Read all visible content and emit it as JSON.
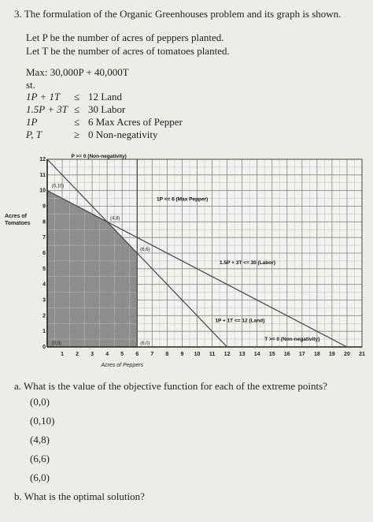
{
  "question": {
    "title": "3. The formulation of the Organic Greenhouses problem and its graph is shown.",
    "let_p": "Let P be the number of acres of peppers planted.",
    "let_t": "Let T be the number of acres of tomatoes planted.",
    "objective": "Max: 30,000P + 40,000T",
    "st": "st.",
    "constraints": [
      {
        "lhs": "1P + 1T",
        "rel": "≤",
        "rhs": "12 Land"
      },
      {
        "lhs": "1.5P + 3T",
        "rel": "≤",
        "rhs": "30 Labor"
      },
      {
        "lhs": "1P",
        "rel": "≤",
        "rhs": "6 Max Acres of Pepper"
      },
      {
        "lhs": "P, T",
        "rel": "≥",
        "rhs": "0 Non-negativity"
      }
    ]
  },
  "chart_data": {
    "type": "line",
    "xlabel": "Acres of Peppers",
    "ylabel": "Acres of Tomatoes",
    "xlim": [
      0,
      21
    ],
    "ylim": [
      0,
      12
    ],
    "x_ticks": [
      "0",
      "1",
      "2",
      "3",
      "4",
      "5",
      "6",
      "7",
      "8",
      "9",
      "10",
      "11",
      "12",
      "13",
      "14",
      "15",
      "16",
      "17",
      "18",
      "19",
      "20",
      "21"
    ],
    "y_ticks": [
      "0",
      "1",
      "2",
      "3",
      "4",
      "5",
      "6",
      "7",
      "8",
      "9",
      "10",
      "11",
      "12"
    ],
    "grid": true,
    "series": [
      {
        "name": "1P + 1T <= 12 (Land)",
        "x": [
          0,
          12
        ],
        "y": [
          12,
          0
        ]
      },
      {
        "name": "1.5P + 3T <= 30 (Labor)",
        "x": [
          0,
          20
        ],
        "y": [
          10,
          0
        ]
      },
      {
        "name": "1P <= 6 (Max Pepper)",
        "x": [
          6,
          6
        ],
        "y": [
          0,
          12
        ]
      }
    ],
    "feasible_region": [
      [
        0,
        0
      ],
      [
        0,
        10
      ],
      [
        4,
        8
      ],
      [
        6,
        6
      ],
      [
        6,
        0
      ]
    ],
    "line_labels": [
      {
        "text": "P >= 0 (Non-negativity)",
        "x": 1.6,
        "y": 12.1
      },
      {
        "text": "1P <= 6 (Max Pepper)",
        "x": 7.3,
        "y": 9.35
      },
      {
        "text": "1.5P + 3T <= 30 (Labor)",
        "x": 11.5,
        "y": 5.3
      },
      {
        "text": "1P + 1T <= 12 (Land)",
        "x": 11.2,
        "y": 1.6
      },
      {
        "text": "T >= 0 (Non-negativity)",
        "x": 14.5,
        "y": 0.4
      }
    ],
    "point_labels": [
      {
        "text": "(0,10)",
        "x": 0.3,
        "y": 10.2
      },
      {
        "text": "(4,8)",
        "x": 4.2,
        "y": 8.15
      },
      {
        "text": "(6,6)",
        "x": 6.2,
        "y": 6.15
      },
      {
        "text": "(0,0)",
        "x": 0.3,
        "y": 0.15
      },
      {
        "text": "(6,0)",
        "x": 6.2,
        "y": 0.15
      }
    ]
  },
  "part_a": {
    "question": "a.  What is the value of the objective function for each of the extreme points?",
    "points": [
      "(0,0)",
      "(0,10)",
      "(4,8)",
      "(6,6)",
      "(6,0)"
    ]
  },
  "part_b": {
    "question": "b.  What is the optimal solution?"
  }
}
